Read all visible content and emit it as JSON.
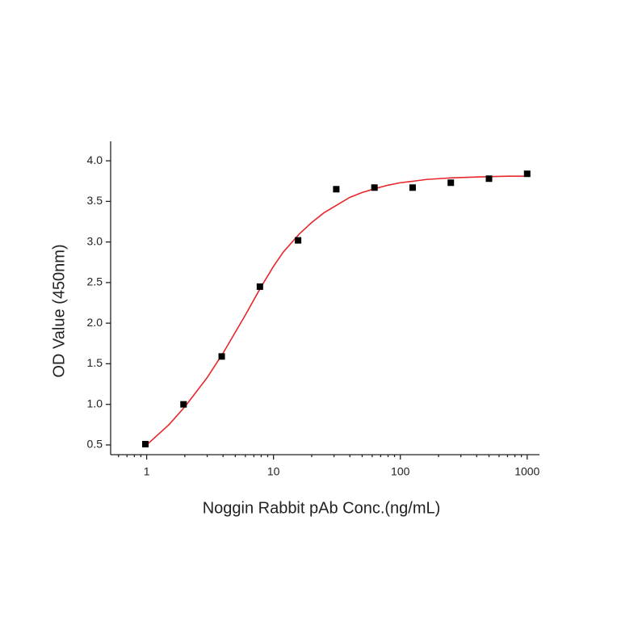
{
  "chart_data": {
    "type": "scatter",
    "xlabel": "Noggin Rabbit pAb Conc.(ng/mL)",
    "ylabel": "OD Value (450nm)",
    "xscale": "log",
    "xlim": [
      0.52,
      1250
    ],
    "ylim": [
      0.38,
      4.24
    ],
    "xticks": [
      1,
      10,
      100,
      1000
    ],
    "yticks": [
      0.5,
      {
        "value": 1,
        "label": "1.0"
      },
      1.5,
      {
        "value": 2,
        "label": "2.0"
      },
      2.5,
      {
        "value": 3,
        "label": "3.0"
      },
      3.5,
      {
        "value": 4,
        "label": "4.0"
      }
    ],
    "series": [
      {
        "kind": "points",
        "color": "#000000",
        "x": [
          0.977,
          1.953,
          3.906,
          7.8125,
          15.625,
          31.25,
          62.5,
          125,
          250,
          500,
          1000
        ],
        "values": [
          0.51,
          1.0,
          1.59,
          2.45,
          3.02,
          3.65,
          3.67,
          3.67,
          3.73,
          3.78,
          3.84
        ]
      },
      {
        "kind": "line",
        "color": "#e8262b",
        "x": [
          1,
          1.5,
          2,
          3,
          4,
          6,
          8,
          10,
          12,
          16,
          20,
          25,
          32,
          40,
          50,
          64,
          80,
          100,
          128,
          160,
          200,
          256,
          400,
          512,
          700,
          1000
        ],
        "values": [
          0.5,
          0.75,
          0.97,
          1.33,
          1.63,
          2.1,
          2.45,
          2.7,
          2.88,
          3.1,
          3.24,
          3.36,
          3.46,
          3.55,
          3.61,
          3.66,
          3.7,
          3.73,
          3.75,
          3.77,
          3.78,
          3.79,
          3.8,
          3.805,
          3.81,
          3.81
        ]
      }
    ]
  }
}
